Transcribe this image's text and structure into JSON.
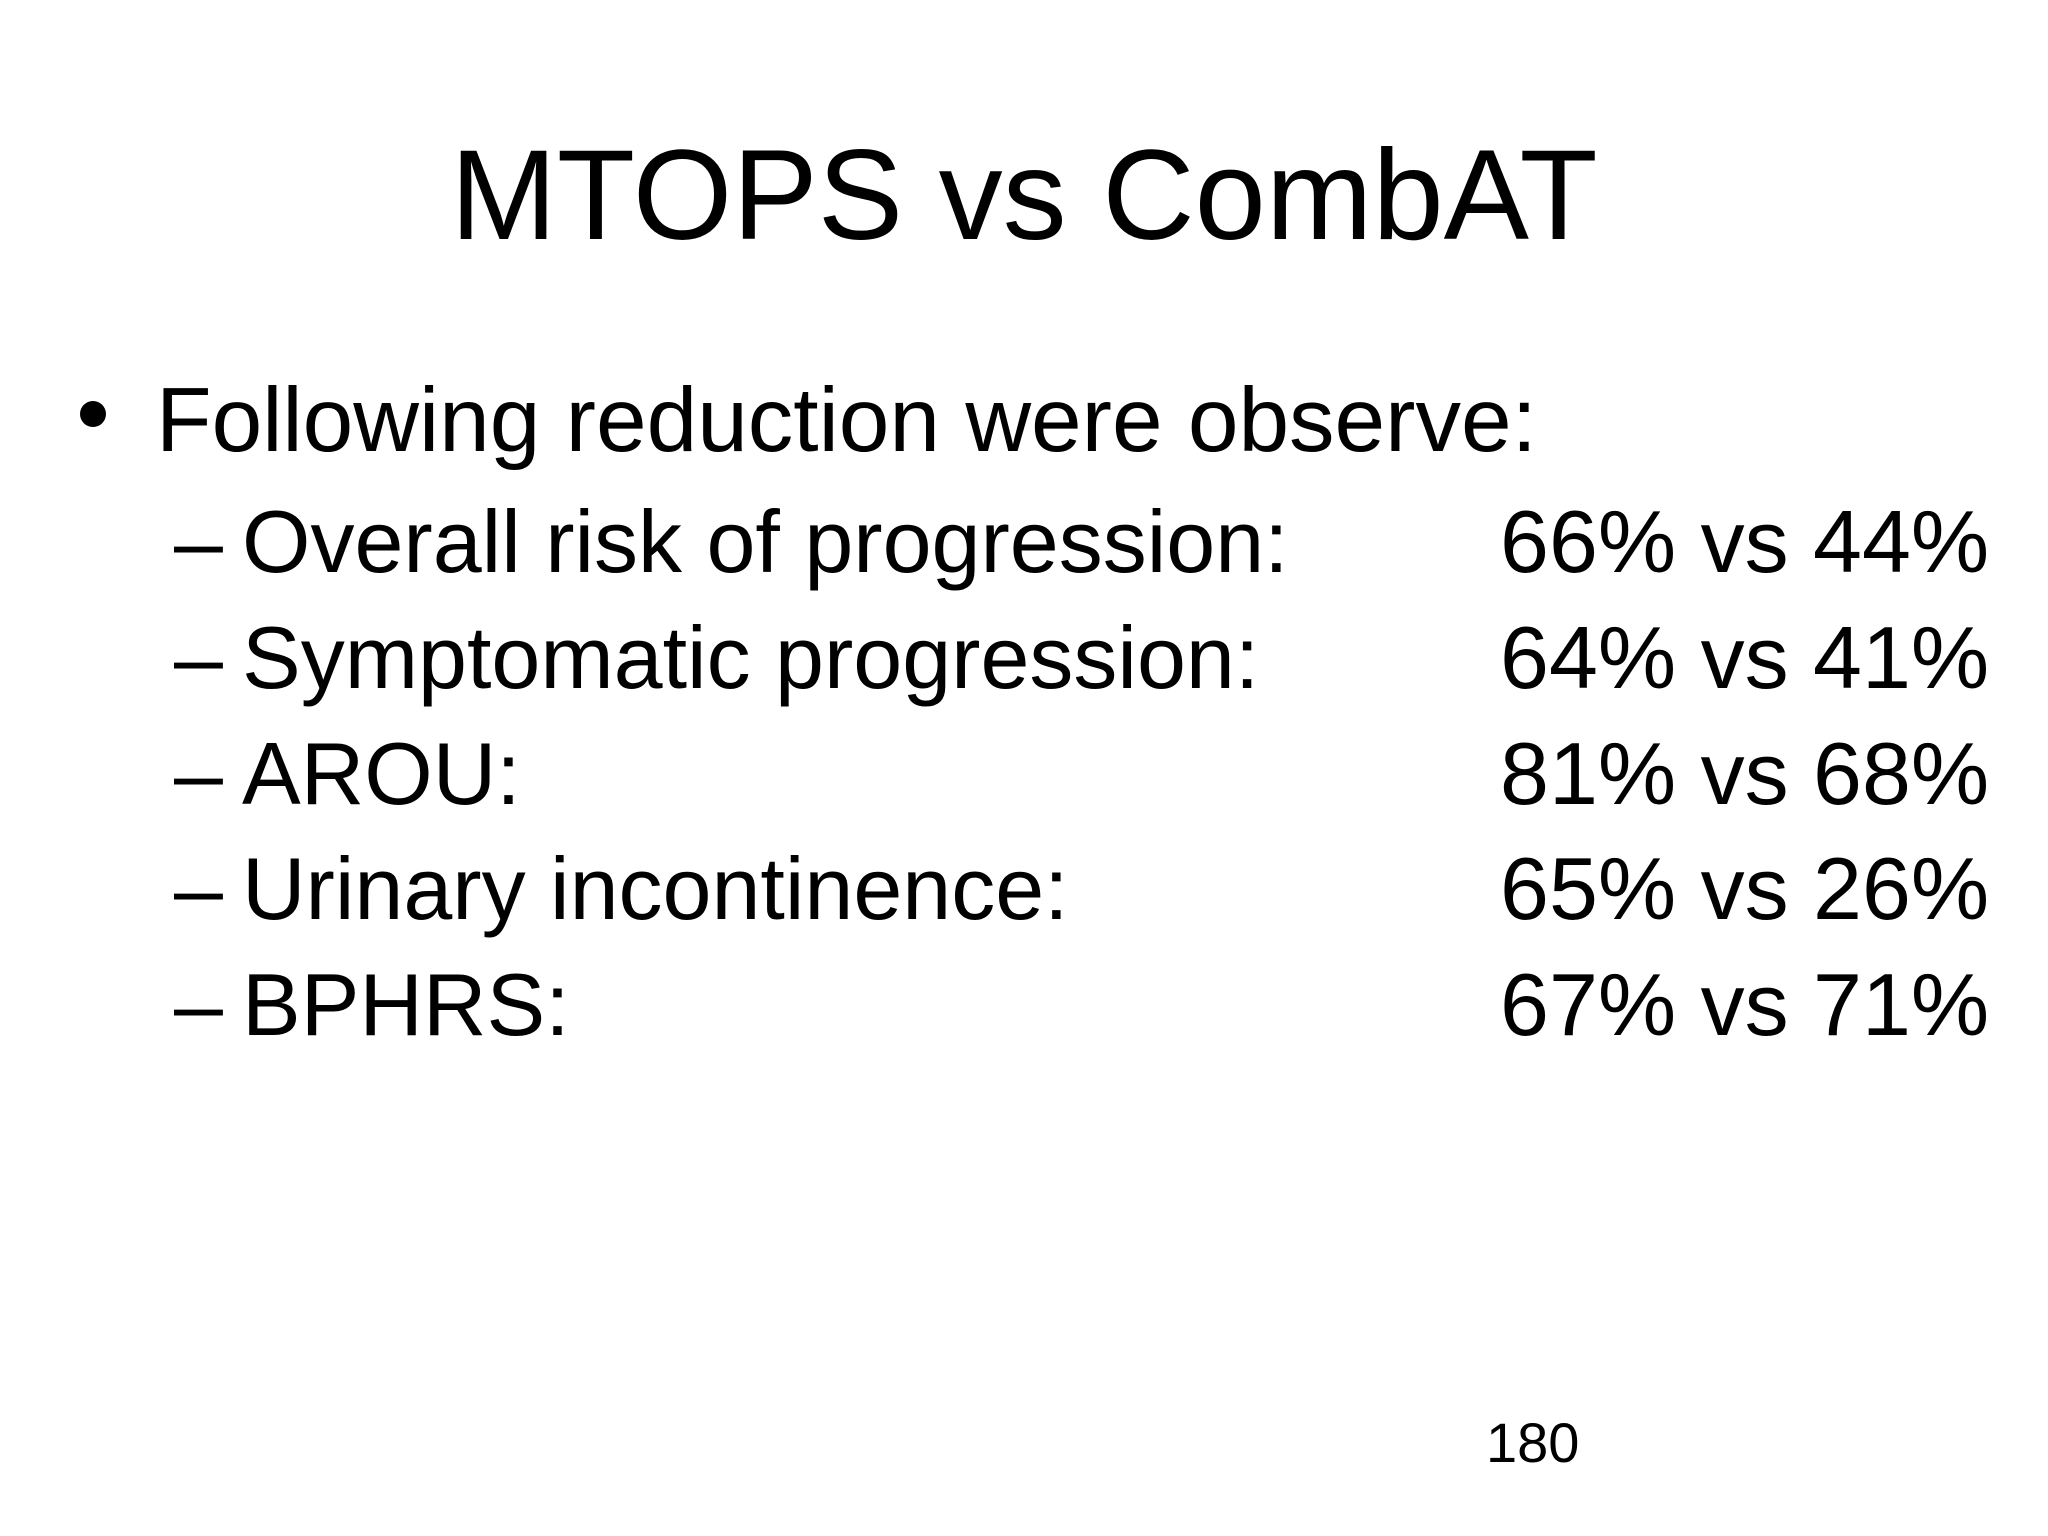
{
  "slide": {
    "title": "MTOPS vs CombAT",
    "bullet": {
      "text": "Following reduction were observe:"
    },
    "dash": "–",
    "items": [
      {
        "label": "Overall risk of progression:",
        "value": "66% vs 44%"
      },
      {
        "label": "Symptomatic progression:",
        "value": "64% vs 41%"
      },
      {
        "label": "AROU:",
        "value": "81% vs 68%"
      },
      {
        "label": "Urinary incontinence:",
        "value": "65% vs 26%"
      },
      {
        "label": "BPHRS:",
        "value": "67% vs 71%"
      }
    ],
    "page_number": "180",
    "colors": {
      "background": "#ffffff",
      "text": "#000000"
    }
  }
}
